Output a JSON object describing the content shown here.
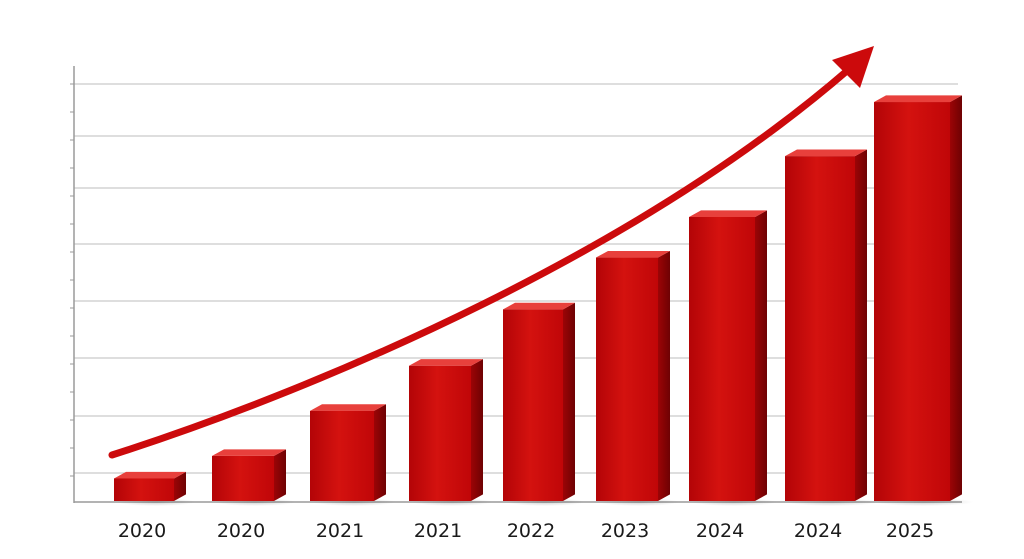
{
  "chart_data": {
    "type": "bar",
    "style": "3d",
    "categories": [
      "2020",
      "2020",
      "2021",
      "2021",
      "2022",
      "2023",
      "2024",
      "2024",
      "2025"
    ],
    "values": [
      1,
      2,
      4,
      6,
      8.5,
      10.8,
      12.6,
      15.3,
      17.7
    ],
    "ylim": [
      0,
      18.5
    ],
    "grid": true,
    "trend_arrow": true,
    "colors": {
      "bar_front": "#c8070b",
      "bar_front_light": "#d81a1c",
      "bar_top": "#e8403c",
      "bar_side": "#8f0305",
      "arrow": "#cc0a0c",
      "grid": "#c9c9c9",
      "axis": "#9a9a9a"
    }
  }
}
